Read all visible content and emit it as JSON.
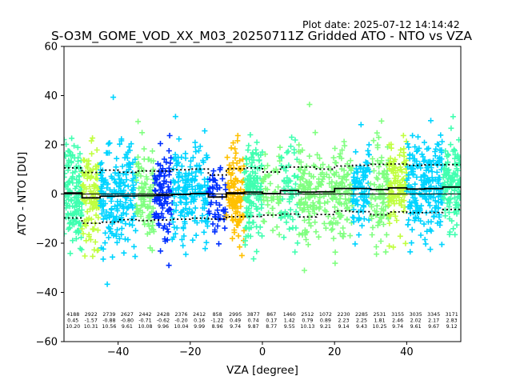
{
  "plot_date": "Plot date: 2025-07-12 14:14:42",
  "chart_data": {
    "type": "scatter",
    "title": "S-O3M_GOME_VOD_XX_M03_20250711Z Gridded ATO - NTO vs VZA",
    "xlabel": "VZA [degree]",
    "ylabel": "ATO - NTO [DU]",
    "xlim": [
      -55,
      55
    ],
    "ylim": [
      -60,
      60
    ],
    "xticks": [
      -40,
      -20,
      0,
      20,
      40
    ],
    "yticks": [
      -60,
      -40,
      -20,
      0,
      20,
      40,
      60
    ],
    "grid": false,
    "bins": [
      {
        "x": -52.5,
        "count": "4188",
        "mean": "0.45",
        "std": "10.20"
      },
      {
        "x": -47.5,
        "count": "2922",
        "mean": "-1.57",
        "std": "10.31"
      },
      {
        "x": -42.5,
        "count": "2739",
        "mean": "-0.88",
        "std": "10.56"
      },
      {
        "x": -37.5,
        "count": "2627",
        "mean": "-0.80",
        "std": "9.61"
      },
      {
        "x": -32.5,
        "count": "2442",
        "mean": "-0.71",
        "std": "10.08"
      },
      {
        "x": -27.5,
        "count": "2428",
        "mean": "-0.62",
        "std": "9.96"
      },
      {
        "x": -22.5,
        "count": "2376",
        "mean": "-0.20",
        "std": "10.04"
      },
      {
        "x": -17.5,
        "count": "2412",
        "mean": "0.16",
        "std": "9.99"
      },
      {
        "x": -12.5,
        "count": "858",
        "mean": "-1.22",
        "std": "8.96"
      },
      {
        "x": -7.5,
        "count": "2995",
        "mean": "0.49",
        "std": "9.74"
      },
      {
        "x": -2.5,
        "count": "3877",
        "mean": "0.74",
        "std": "9.87"
      },
      {
        "x": 2.5,
        "count": "867",
        "mean": "0.17",
        "std": "8.77"
      },
      {
        "x": 7.5,
        "count": "1460",
        "mean": "1.42",
        "std": "9.55"
      },
      {
        "x": 12.5,
        "count": "2512",
        "mean": "0.79",
        "std": "10.13"
      },
      {
        "x": 17.5,
        "count": "1072",
        "mean": "0.89",
        "std": "9.21"
      },
      {
        "x": 22.5,
        "count": "2230",
        "mean": "2.23",
        "std": "9.14"
      },
      {
        "x": 27.5,
        "count": "2285",
        "mean": "2.25",
        "std": "9.43"
      },
      {
        "x": 32.5,
        "count": "2531",
        "mean": "1.81",
        "std": "10.25"
      },
      {
        "x": 37.5,
        "count": "3155",
        "mean": "2.46",
        "std": "9.74"
      },
      {
        "x": 42.5,
        "count": "3035",
        "mean": "2.02",
        "std": "9.61"
      },
      {
        "x": 47.5,
        "count": "3345",
        "mean": "2.17",
        "std": "9.67"
      },
      {
        "x": 52.5,
        "count": "3171",
        "mean": "2.83",
        "std": "9.12"
      }
    ],
    "marker_colors": [
      "#80ff80",
      "#00d4ff",
      "#40ffb0",
      "#c0ff40",
      "#ffc000",
      "#0030ff"
    ]
  }
}
